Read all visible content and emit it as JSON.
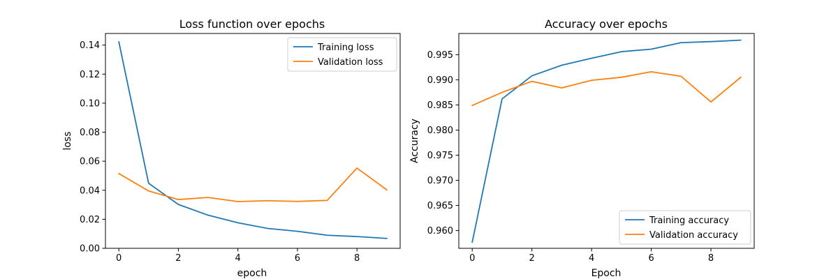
{
  "chart_data": [
    {
      "type": "line",
      "title": "Loss function over epochs",
      "xlabel": "epoch",
      "ylabel": "loss",
      "xlim": [
        -0.45,
        9.45
      ],
      "ylim": [
        0.0,
        0.148
      ],
      "xticks": [
        0,
        2,
        4,
        6,
        8
      ],
      "xtick_labels": [
        "0",
        "2",
        "4",
        "6",
        "8"
      ],
      "yticks": [
        0.0,
        0.02,
        0.04,
        0.06,
        0.08,
        0.1,
        0.12,
        0.14
      ],
      "ytick_labels": [
        "0.00",
        "0.02",
        "0.04",
        "0.06",
        "0.08",
        "0.10",
        "0.12",
        "0.14"
      ],
      "grid": false,
      "legend_position": "top-right",
      "x": [
        0,
        1,
        2,
        3,
        4,
        5,
        6,
        7,
        8,
        9
      ],
      "series": [
        {
          "name": "Training loss",
          "color": "#1f77b4",
          "values": [
            0.1422,
            0.0448,
            0.0302,
            0.0228,
            0.0176,
            0.0137,
            0.0117,
            0.009,
            0.0081,
            0.0068
          ]
        },
        {
          "name": "Validation loss",
          "color": "#ff7f0e",
          "values": [
            0.0515,
            0.0395,
            0.0336,
            0.035,
            0.0322,
            0.0328,
            0.0323,
            0.033,
            0.0553,
            0.0403
          ]
        }
      ]
    },
    {
      "type": "line",
      "title": "Accuracy over epochs",
      "xlabel": "Epoch",
      "ylabel": "Accuracy",
      "xlim": [
        -0.45,
        9.45
      ],
      "ylim": [
        0.95647,
        0.99922
      ],
      "xticks": [
        0,
        2,
        4,
        6,
        8
      ],
      "xtick_labels": [
        "0",
        "2",
        "4",
        "6",
        "8"
      ],
      "yticks": [
        0.96,
        0.965,
        0.97,
        0.975,
        0.98,
        0.985,
        0.99,
        0.995
      ],
      "ytick_labels": [
        "0.960",
        "0.965",
        "0.970",
        "0.975",
        "0.980",
        "0.985",
        "0.990",
        "0.995"
      ],
      "grid": false,
      "legend_position": "bottom-right",
      "x": [
        0,
        1,
        2,
        3,
        4,
        5,
        6,
        7,
        8,
        9
      ],
      "series": [
        {
          "name": "Training accuracy",
          "color": "#1f77b4",
          "values": [
            0.9577,
            0.9862,
            0.9908,
            0.9929,
            0.9943,
            0.9956,
            0.9961,
            0.9974,
            0.9976,
            0.9979
          ]
        },
        {
          "name": "Validation accuracy",
          "color": "#ff7f0e",
          "values": [
            0.9849,
            0.9875,
            0.9897,
            0.9884,
            0.9899,
            0.9905,
            0.9916,
            0.9907,
            0.9856,
            0.9905
          ]
        }
      ]
    }
  ]
}
